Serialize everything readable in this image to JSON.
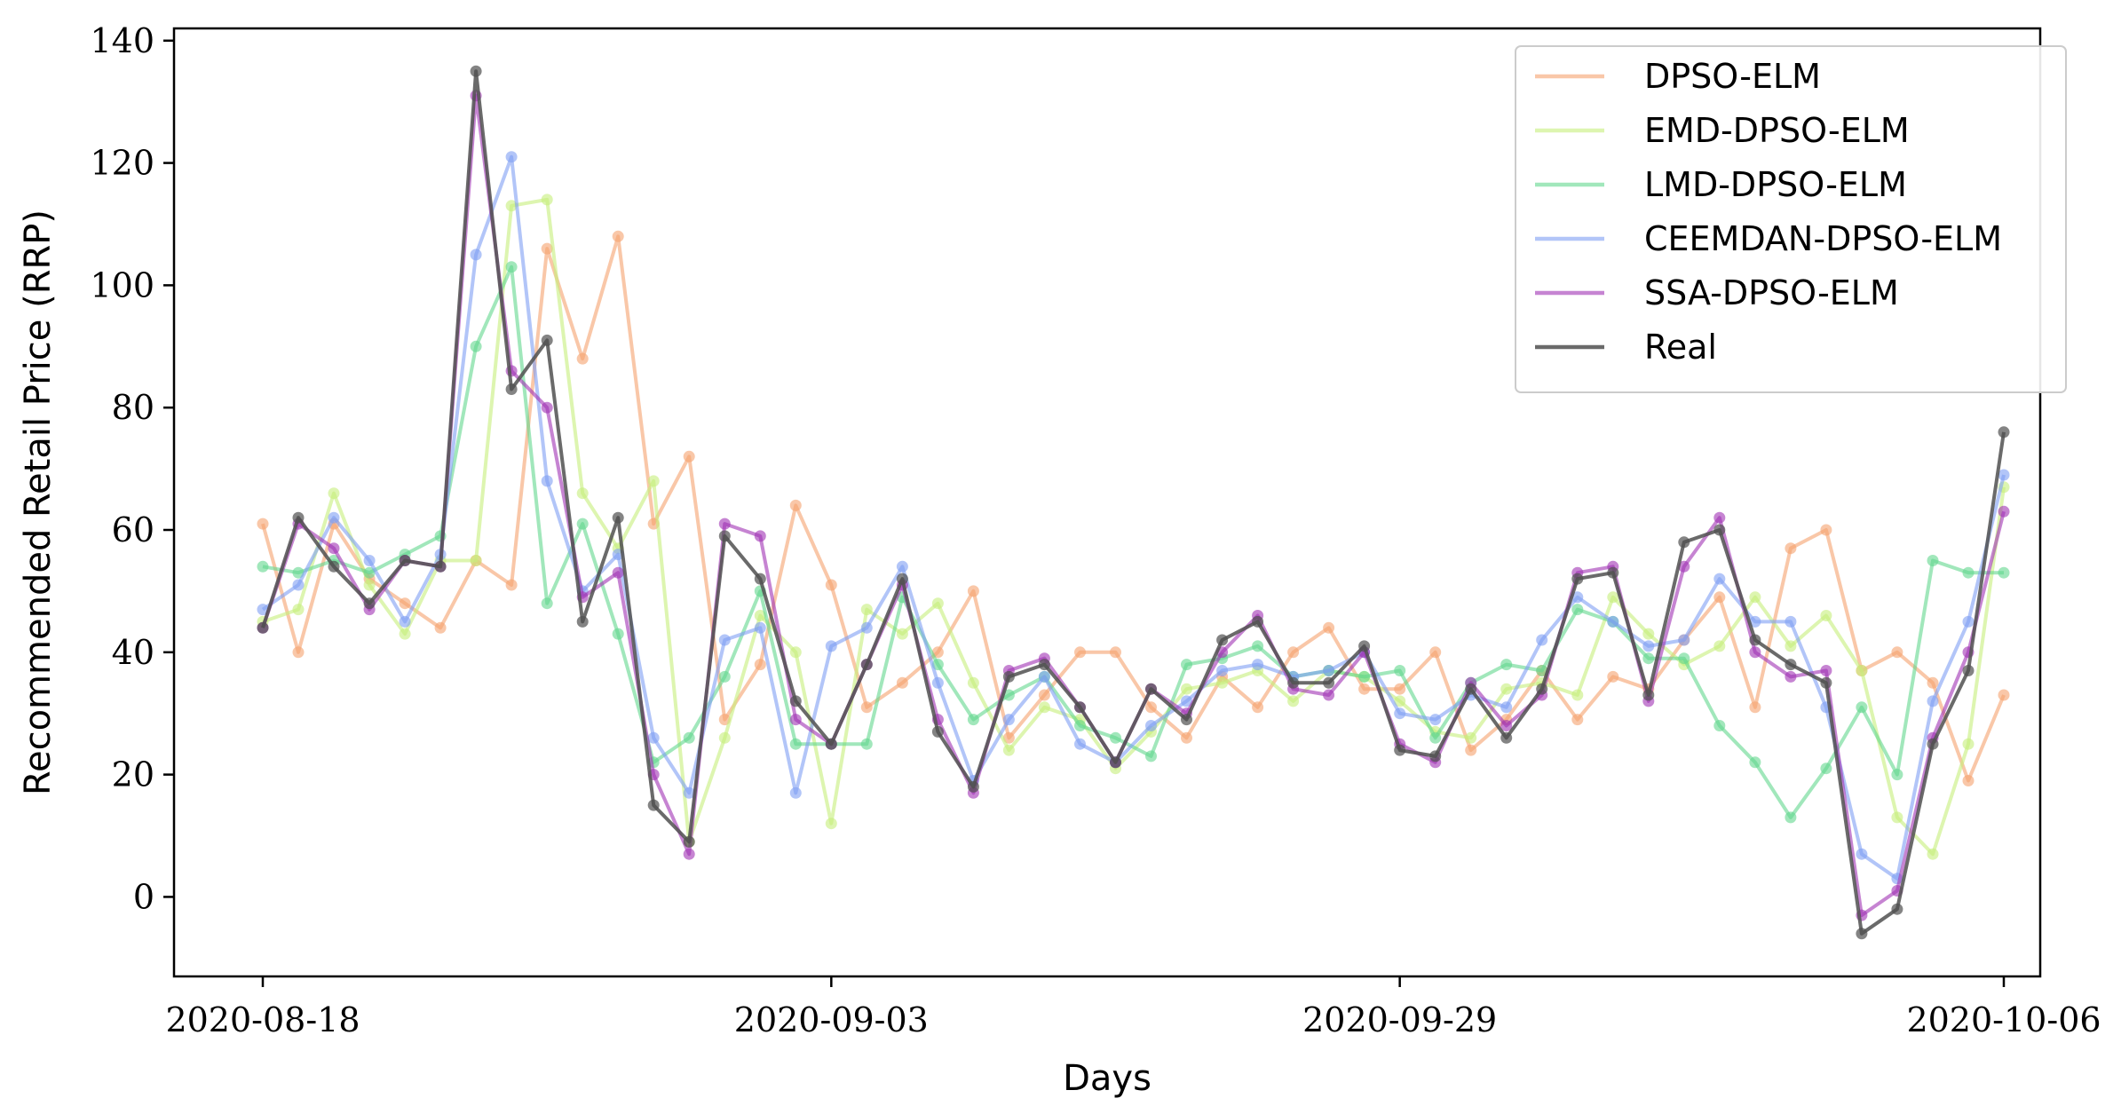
{
  "chart_data": {
    "type": "line",
    "title": "",
    "xlabel": "Days",
    "ylabel": "Recommended Retail Price (RRP)",
    "ylim": [
      -13,
      142
    ],
    "yticks": [
      0,
      20,
      40,
      60,
      80,
      100,
      120,
      140
    ],
    "xtick_labels": [
      "2020-08-18",
      "2020-09-03",
      "2020-09-29",
      "2020-10-06"
    ],
    "xtick_index": [
      0,
      16,
      32,
      49
    ],
    "n_points": 50,
    "grid": false,
    "legend_position": "top-right",
    "series": [
      {
        "name": "DPSO-ELM",
        "color": "#f5a26e",
        "values": [
          61,
          40,
          61,
          52,
          48,
          44,
          55,
          51,
          106,
          88,
          108,
          61,
          72,
          29,
          38,
          64,
          51,
          31,
          35,
          40,
          50,
          26,
          33,
          40,
          40,
          31,
          26,
          36,
          31,
          40,
          44,
          34,
          34,
          40,
          24,
          29,
          37,
          29,
          36,
          34,
          42,
          49,
          31,
          57,
          60,
          37,
          40,
          35,
          19,
          33
        ]
      },
      {
        "name": "EMD-DPSO-ELM",
        "color": "#c6ef7c",
        "values": [
          45,
          47,
          66,
          51,
          43,
          55,
          55,
          113,
          114,
          66,
          57,
          68,
          9,
          26,
          46,
          40,
          12,
          47,
          43,
          48,
          35,
          24,
          31,
          29,
          21,
          27,
          34,
          35,
          37,
          32,
          37,
          36,
          32,
          27,
          26,
          34,
          35,
          33,
          49,
          43,
          38,
          41,
          49,
          41,
          46,
          37,
          13,
          7,
          25,
          67
        ]
      },
      {
        "name": "LMD-DPSO-ELM",
        "color": "#62d78e",
        "values": [
          54,
          53,
          55,
          53,
          56,
          59,
          90,
          103,
          48,
          61,
          43,
          22,
          26,
          36,
          50,
          25,
          25,
          25,
          49,
          38,
          29,
          33,
          36,
          28,
          26,
          23,
          38,
          39,
          41,
          36,
          37,
          36,
          37,
          26,
          35,
          38,
          37,
          47,
          45,
          39,
          39,
          28,
          22,
          13,
          21,
          31,
          20,
          55,
          53,
          53
        ]
      },
      {
        "name": "CEEMDAN-DPSO-ELM",
        "color": "#7f9ef3",
        "values": [
          47,
          51,
          62,
          55,
          45,
          56,
          105,
          121,
          68,
          50,
          56,
          26,
          17,
          42,
          44,
          17,
          41,
          44,
          54,
          35,
          19,
          29,
          36,
          25,
          22,
          28,
          32,
          37,
          38,
          36,
          37,
          40,
          30,
          29,
          33,
          31,
          42,
          49,
          45,
          41,
          42,
          52,
          45,
          45,
          31,
          7,
          3,
          32,
          45,
          69
        ]
      },
      {
        "name": "SSA-DPSO-ELM",
        "color": "#a032b4",
        "values": [
          44,
          61,
          57,
          47,
          55,
          54,
          131,
          86,
          80,
          49,
          53,
          20,
          7,
          61,
          59,
          29,
          25,
          38,
          51,
          29,
          17,
          37,
          39,
          31,
          22,
          34,
          30,
          40,
          46,
          34,
          33,
          40,
          25,
          22,
          35,
          28,
          33,
          53,
          54,
          32,
          54,
          62,
          40,
          36,
          37,
          -3,
          1,
          26,
          40,
          63
        ]
      },
      {
        "name": "Real",
        "color": "#505050",
        "values": [
          44,
          62,
          54,
          48,
          55,
          54,
          135,
          83,
          91,
          45,
          62,
          15,
          9,
          59,
          52,
          32,
          25,
          38,
          52,
          27,
          18,
          36,
          38,
          31,
          22,
          34,
          29,
          42,
          45,
          35,
          35,
          41,
          24,
          23,
          34,
          26,
          34,
          52,
          53,
          33,
          58,
          60,
          42,
          38,
          35,
          -6,
          -2,
          25,
          37,
          76
        ]
      }
    ]
  }
}
